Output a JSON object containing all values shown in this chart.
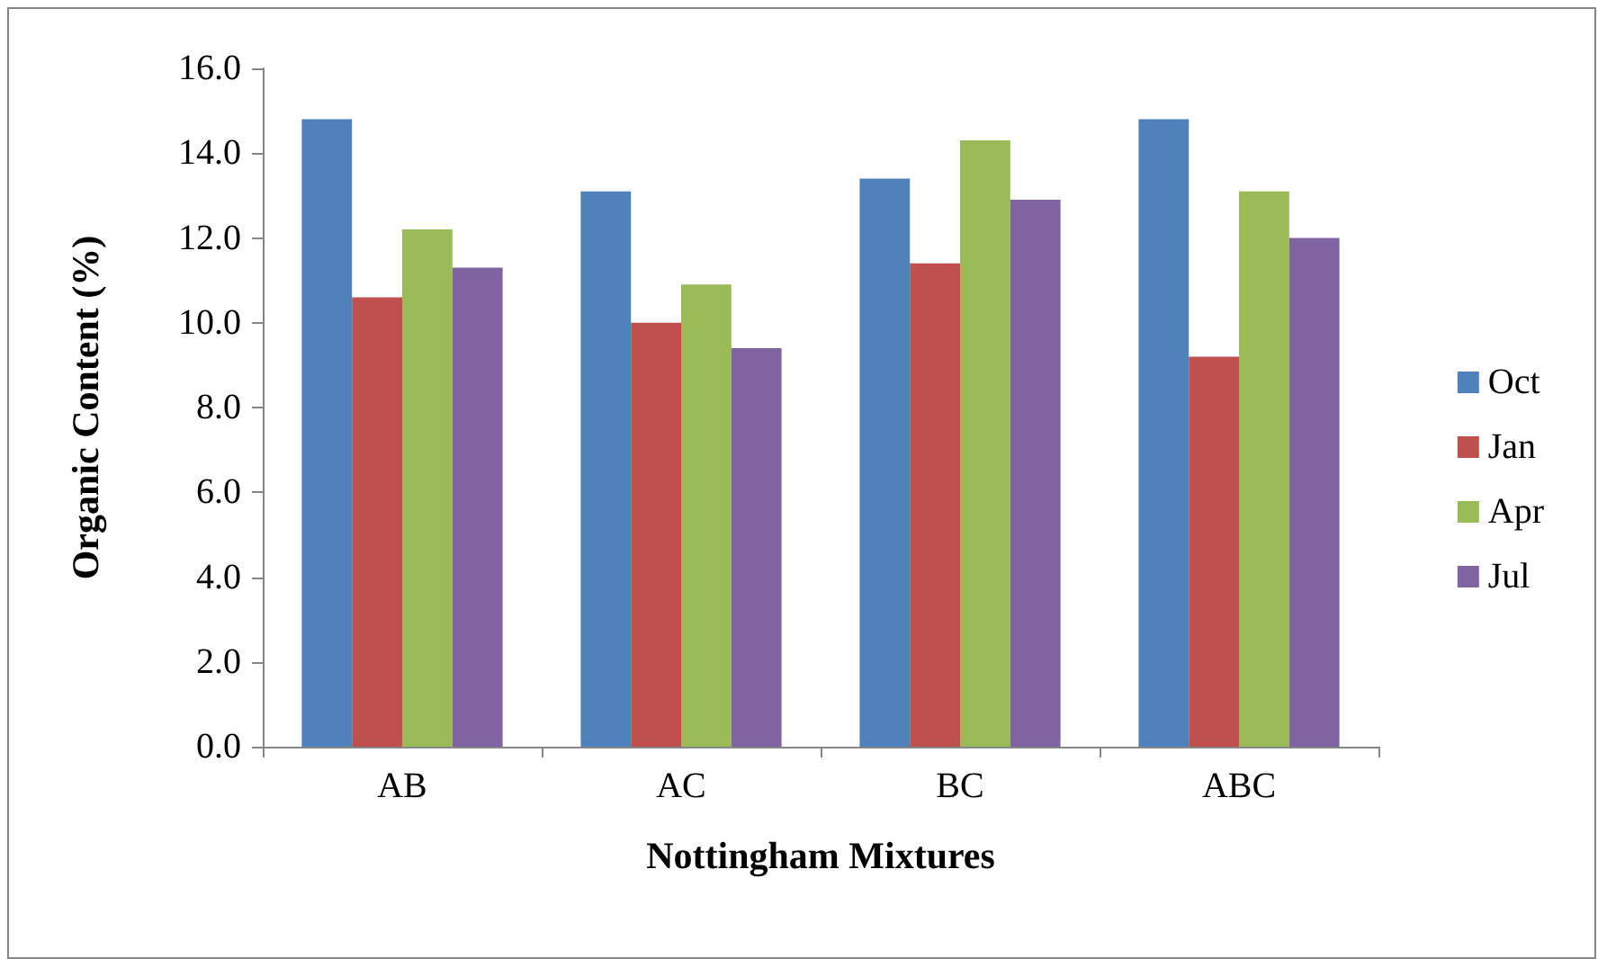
{
  "chart_data": {
    "type": "bar",
    "xlabel": "Nottingham Mixtures",
    "ylabel": "Organic Content (%)",
    "categories": [
      "AB",
      "AC",
      "BC",
      "ABC"
    ],
    "series": [
      {
        "name": "Oct",
        "color": "#4f81bd",
        "values": [
          14.8,
          13.1,
          13.4,
          14.8
        ]
      },
      {
        "name": "Jan",
        "color": "#c0504d",
        "values": [
          10.6,
          10.0,
          11.4,
          9.2
        ]
      },
      {
        "name": "Apr",
        "color": "#9bbb59",
        "values": [
          12.2,
          10.9,
          14.3,
          13.1
        ]
      },
      {
        "name": "Jul",
        "color": "#8064a2",
        "values": [
          11.3,
          9.4,
          12.9,
          12.0
        ]
      }
    ],
    "ylim": [
      0,
      16
    ],
    "yticks": [
      {
        "value": 0,
        "label": "0.0"
      },
      {
        "value": 2,
        "label": "2.0"
      },
      {
        "value": 4,
        "label": "4.0"
      },
      {
        "value": 6,
        "label": "6.0"
      },
      {
        "value": 8,
        "label": "8.0"
      },
      {
        "value": 10,
        "label": "10.0"
      },
      {
        "value": 12,
        "label": "12.0"
      },
      {
        "value": 14,
        "label": "14.0"
      },
      {
        "value": 16,
        "label": "16.0"
      }
    ],
    "grid": false,
    "legend": "right"
  }
}
